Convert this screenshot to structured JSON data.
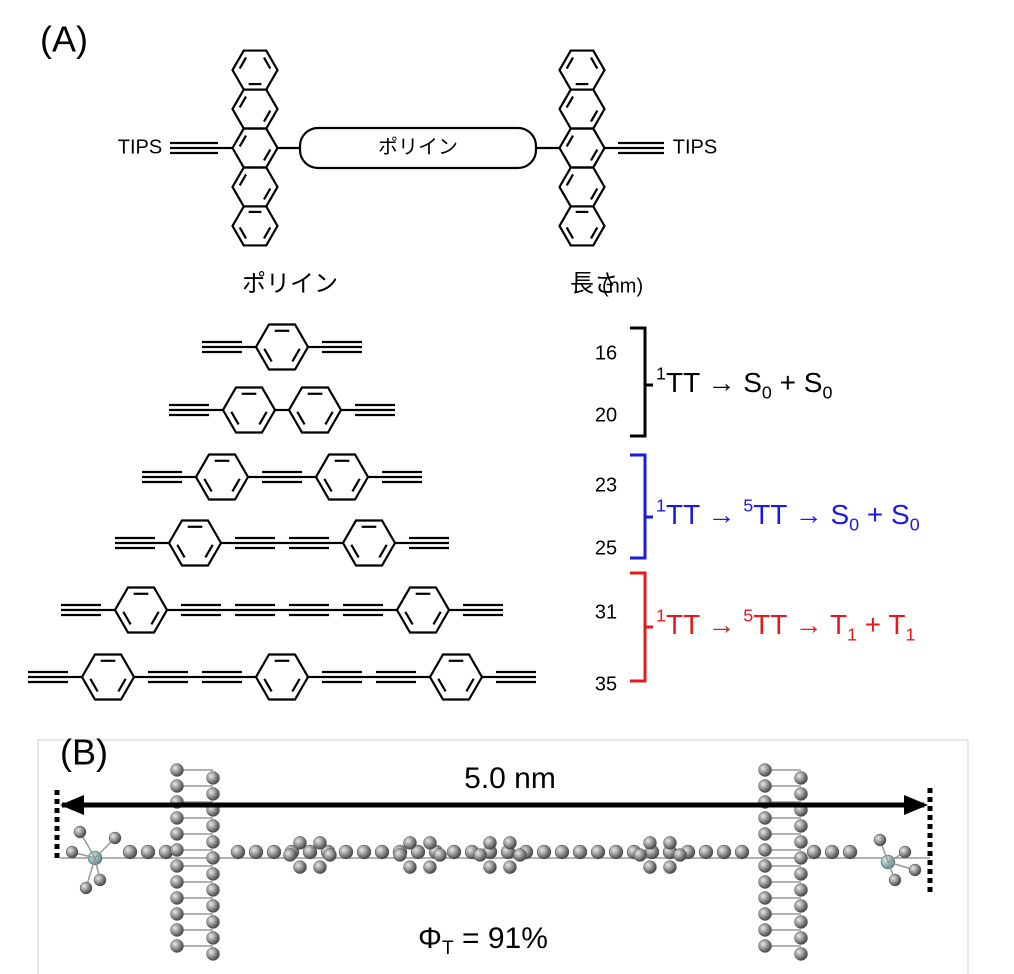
{
  "panel_a": {
    "label": "(A)",
    "substituents": [
      "TIPS",
      "TIPS"
    ],
    "linker": "ポリイン",
    "headers": {
      "polyyne": "ポリイン",
      "length": "長さ",
      "length_unit": "(nm)"
    },
    "lengths": [
      16,
      20,
      23,
      25,
      31,
      35
    ],
    "pathways": [
      {
        "color": "#000000",
        "segments": [
          {
            "text": "1",
            "style": "sup"
          },
          {
            "text": "TT → S",
            "style": "normal"
          },
          {
            "text": "0",
            "style": "sub"
          },
          {
            "text": " + S",
            "style": "normal"
          },
          {
            "text": "0",
            "style": "sub"
          }
        ]
      },
      {
        "color": "#1a1ae6",
        "segments": [
          {
            "text": "1",
            "style": "sup"
          },
          {
            "text": "TT → ",
            "style": "normal"
          },
          {
            "text": "5",
            "style": "sup"
          },
          {
            "text": "TT → S",
            "style": "normal"
          },
          {
            "text": "0",
            "style": "sub"
          },
          {
            "text": " + S",
            "style": "normal"
          },
          {
            "text": "0",
            "style": "sub"
          }
        ]
      },
      {
        "color": "#e61a1a",
        "segments": [
          {
            "text": "1",
            "style": "sup"
          },
          {
            "text": "TT → ",
            "style": "normal"
          },
          {
            "text": "5",
            "style": "sup"
          },
          {
            "text": "TT → T",
            "style": "normal"
          },
          {
            "text": "1",
            "style": "sub"
          },
          {
            "text": " + T",
            "style": "normal"
          },
          {
            "text": "1",
            "style": "sub"
          }
        ]
      }
    ]
  },
  "panel_b": {
    "label": "(B)",
    "distance": "5.0 nm",
    "yield": [
      {
        "text": "Φ",
        "style": "normal"
      },
      {
        "text": "T",
        "style": "sub"
      },
      {
        "text": " = 91%",
        "style": "normal"
      }
    ]
  }
}
